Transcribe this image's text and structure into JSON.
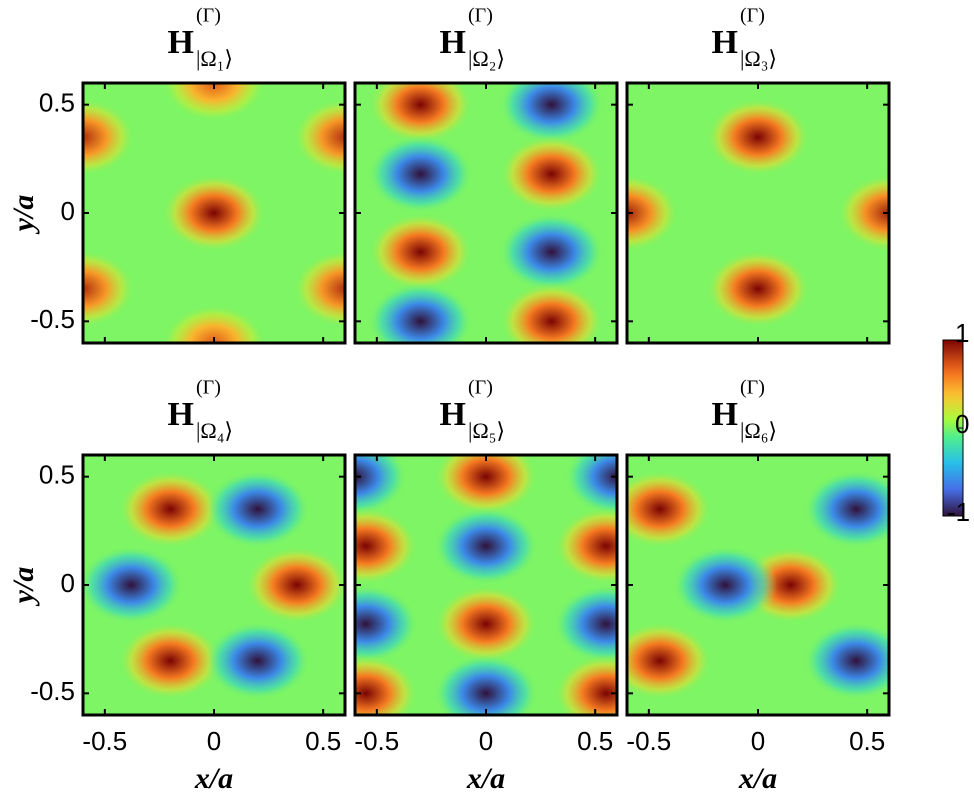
{
  "chart_data": [
    {
      "type": "heatmap",
      "title": "H",
      "title_superscript": "(Γ)",
      "title_subscript": "|Ω₁⟩",
      "ylabel": "y/a",
      "xlim": [
        -0.6,
        0.6
      ],
      "ylim": [
        -0.6,
        0.6
      ],
      "xticks": [
        -0.5,
        0,
        0.5
      ],
      "yticks": [
        -0.5,
        0,
        0.5
      ],
      "peaks": {
        "x": [
          0,
          -0.6,
          0.6,
          -0.6,
          0.6,
          0,
          0
        ],
        "y": [
          0,
          0.35,
          0.35,
          -0.35,
          -0.35,
          0.6,
          -0.6
        ],
        "values": [
          1,
          0.85,
          0.85,
          0.85,
          0.85,
          0.7,
          0.7
        ]
      }
    },
    {
      "type": "heatmap",
      "title": "H",
      "title_superscript": "(Γ)",
      "title_subscript": "|Ω₂⟩",
      "xlim": [
        -0.6,
        0.6
      ],
      "ylim": [
        -0.6,
        0.6
      ],
      "xticks": [
        -0.5,
        0,
        0.5
      ],
      "yticks": [
        -0.5,
        0,
        0.5
      ],
      "peaks": {
        "x": [
          -0.3,
          0.3,
          -0.3,
          0.3,
          -0.3,
          0.3,
          -0.3,
          0.3
        ],
        "y": [
          0.5,
          0.5,
          0.18,
          0.18,
          -0.18,
          -0.18,
          -0.5,
          -0.5
        ],
        "values": [
          1,
          -1,
          -1,
          1,
          1,
          -1,
          -1,
          1
        ]
      }
    },
    {
      "type": "heatmap",
      "title": "H",
      "title_superscript": "(Γ)",
      "title_subscript": "|Ω₃⟩",
      "xlim": [
        -0.6,
        0.6
      ],
      "ylim": [
        -0.6,
        0.6
      ],
      "xticks": [
        -0.5,
        0,
        0.5
      ],
      "yticks": [
        -0.5,
        0,
        0.5
      ],
      "peaks": {
        "x": [
          0,
          0,
          -0.6,
          0.6
        ],
        "y": [
          0.35,
          -0.35,
          0,
          0
        ],
        "values": [
          1,
          1,
          0.9,
          0.9
        ]
      }
    },
    {
      "type": "heatmap",
      "title": "H",
      "title_superscript": "(Γ)",
      "title_subscript": "|Ω₄⟩",
      "ylabel": "y/a",
      "xlabel": "x/a",
      "xlim": [
        -0.6,
        0.6
      ],
      "ylim": [
        -0.6,
        0.6
      ],
      "xticks": [
        -0.5,
        0,
        0.5
      ],
      "yticks": [
        -0.5,
        0,
        0.5
      ],
      "peaks": {
        "x": [
          -0.2,
          0.38,
          -0.2,
          0.2,
          -0.38,
          0.2
        ],
        "y": [
          0.35,
          0,
          -0.35,
          0.35,
          0,
          -0.35
        ],
        "values": [
          1,
          1,
          1,
          -1,
          -1,
          -1
        ]
      }
    },
    {
      "type": "heatmap",
      "title": "H",
      "title_superscript": "(Γ)",
      "title_subscript": "|Ω₅⟩",
      "xlabel": "x/a",
      "xlim": [
        -0.6,
        0.6
      ],
      "ylim": [
        -0.6,
        0.6
      ],
      "xticks": [
        -0.5,
        0,
        0.5
      ],
      "yticks": [
        -0.5,
        0,
        0.5
      ],
      "peaks": {
        "x": [
          -0.6,
          0,
          0.6,
          -0.55,
          0,
          0.55,
          -0.55,
          0,
          0.55,
          -0.55,
          0,
          0.55
        ],
        "y": [
          0.5,
          0.5,
          0.5,
          0.18,
          0.18,
          0.18,
          -0.18,
          -0.18,
          -0.18,
          -0.5,
          -0.5,
          -0.5
        ],
        "values": [
          -1,
          1,
          -1,
          1,
          -1,
          1,
          -1,
          1,
          -1,
          1,
          -1,
          1
        ]
      }
    },
    {
      "type": "heatmap",
      "title": "H",
      "title_superscript": "(Γ)",
      "title_subscript": "|Ω₆⟩",
      "xlabel": "x/a",
      "xlim": [
        -0.6,
        0.6
      ],
      "ylim": [
        -0.6,
        0.6
      ],
      "xticks": [
        -0.5,
        0,
        0.5
      ],
      "yticks": [
        -0.5,
        0,
        0.5
      ],
      "peaks": {
        "x": [
          -0.45,
          0.15,
          -0.45,
          0.45,
          -0.15,
          0.45
        ],
        "y": [
          0.35,
          0,
          -0.35,
          0.35,
          0,
          -0.35
        ],
        "values": [
          1,
          1,
          1,
          -1,
          -1,
          -1
        ]
      }
    }
  ],
  "colorbar": {
    "clim": [
      -1,
      1
    ],
    "ticks": [
      1,
      0,
      -1
    ]
  }
}
